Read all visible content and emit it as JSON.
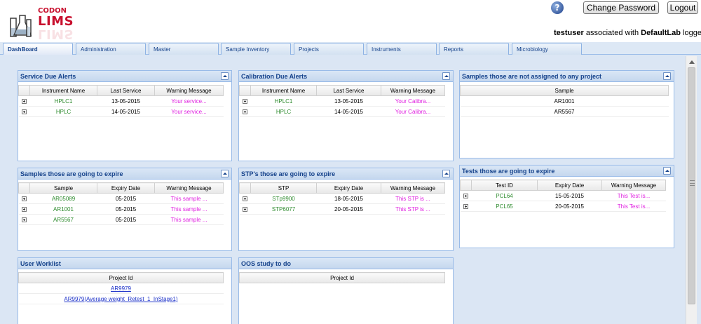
{
  "header": {
    "logo_top": "CODON",
    "logo_bottom": "LIMS",
    "help_icon": "question-icon",
    "change_password_label": "Change Password",
    "logout_label": "Logout",
    "user": "testuser",
    "assoc_text": " associated with ",
    "lab": "DefaultLab",
    "logged_text": " logged in"
  },
  "tabs": [
    "DashBoard",
    "Administration",
    "Master",
    "Sample Inventory",
    "Projects",
    "Instruments",
    "Reports",
    "Microbiology"
  ],
  "colors": {
    "accent": "#15428b",
    "panel_header": "#c5d7ee",
    "green_text": "#2e8b2e",
    "warning_text": "#e020e0",
    "link": "#1a2fc8"
  },
  "panels": {
    "service_due": {
      "title": "Service Due Alerts",
      "columns": [
        "Instrument Name",
        "Last Service",
        "Warning Message"
      ],
      "rows": [
        [
          "HPLC1",
          "13-05-2015",
          "Your service..."
        ],
        [
          "HPLC",
          "14-05-2015",
          "Your service..."
        ]
      ]
    },
    "calibration_due": {
      "title": "Calibration Due Alerts",
      "columns": [
        "Instrument Name",
        "Last Service",
        "Warning Message"
      ],
      "rows": [
        [
          "HPLC1",
          "13-05-2015",
          "Your Calibra..."
        ],
        [
          "HPLC",
          "14-05-2015",
          "Your Calibra..."
        ]
      ]
    },
    "samples_unassigned": {
      "title": "Samples those are not assigned to any project",
      "columns": [
        "Sample"
      ],
      "rows": [
        [
          "AR1001"
        ],
        [
          "AR5567"
        ]
      ]
    },
    "samples_expire": {
      "title": "Samples those are going to expire",
      "columns": [
        "Sample",
        "Expiry Date",
        "Warning Message"
      ],
      "rows": [
        [
          "AR05089",
          "05-2015",
          "This sample ..."
        ],
        [
          "AR1001",
          "05-2015",
          "This sample ..."
        ],
        [
          "AR5567",
          "05-2015",
          "This sample ..."
        ]
      ]
    },
    "stp_expire": {
      "title": "STP's those are going to expire",
      "columns": [
        "STP",
        "Expiry Date",
        "Warning Message"
      ],
      "rows": [
        [
          "STp9900",
          "18-05-2015",
          "This STP is ..."
        ],
        [
          "STP6077",
          "20-05-2015",
          "This STP is ..."
        ]
      ]
    },
    "tests_expire": {
      "title": "Tests those are going to expire",
      "columns": [
        "Test ID",
        "Expiry Date",
        "Warning Message"
      ],
      "rows": [
        [
          "PCL64",
          "15-05-2015",
          "This Test is..."
        ],
        [
          "PCL65",
          "20-05-2015",
          "This Test is..."
        ]
      ]
    },
    "user_worklist": {
      "title": "User Worklist",
      "columns": [
        "Project Id"
      ],
      "rows": [
        [
          "AR9979"
        ],
        [
          "AR9979(Average weight_Retest_1_InStage1)"
        ]
      ]
    },
    "oos_study": {
      "title": "OOS study to do",
      "columns": [
        "Project Id"
      ],
      "rows": []
    }
  }
}
